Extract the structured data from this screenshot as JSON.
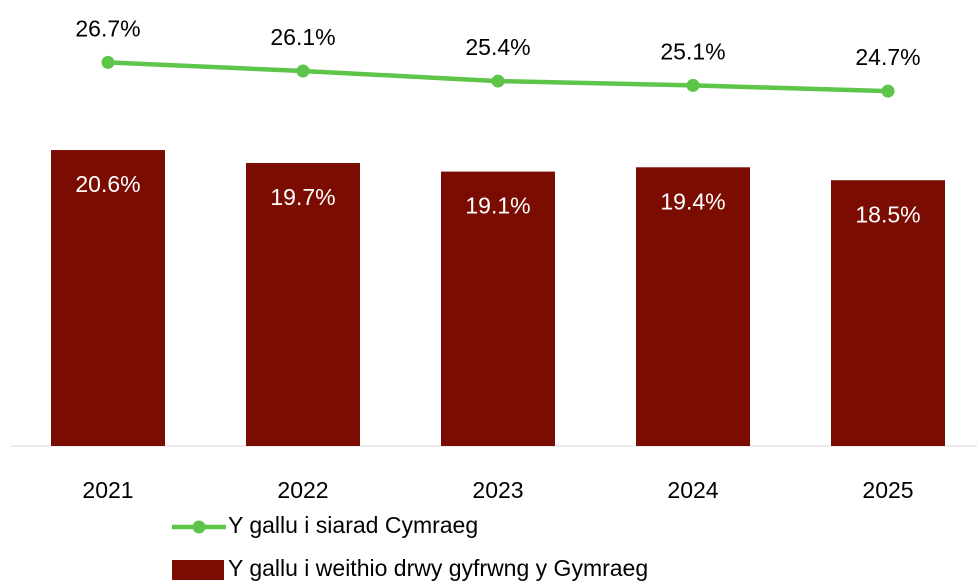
{
  "chart_data": {
    "type": "bar_line",
    "categories": [
      "2021",
      "2022",
      "2023",
      "2024",
      "2025"
    ],
    "series": [
      {
        "name": "Y gallu i siarad Cymraeg",
        "type": "line",
        "color": "#5cc54a",
        "values": [
          26.7,
          26.1,
          25.4,
          25.1,
          24.7
        ],
        "value_labels": [
          "26.7%",
          "26.1%",
          "25.4%",
          "25.1%",
          "24.7%"
        ]
      },
      {
        "name": "Y gallu i weithio drwy gyfrwng y Gymraeg",
        "type": "bar",
        "color": "#7a0c02",
        "values": [
          20.6,
          19.7,
          19.1,
          19.4,
          18.5
        ],
        "value_labels": [
          "20.6%",
          "19.7%",
          "19.1%",
          "19.4%",
          "18.5%"
        ]
      }
    ],
    "ylim": [
      0,
      30
    ],
    "grid": false,
    "legend": "bottom"
  }
}
